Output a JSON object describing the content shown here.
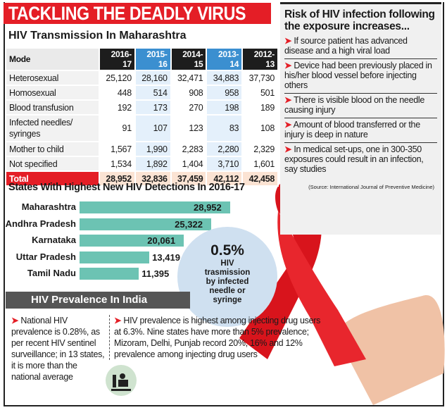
{
  "title": "TACKLING THE DEADLY VIRUS",
  "table": {
    "title": "HIV Transmission In Maharashtra",
    "columns": [
      "Mode",
      "2016-17",
      "2015-16",
      "2014-15",
      "2013-14",
      "2012-13"
    ],
    "rows": [
      [
        "Heterosexual",
        "25,120",
        "28,160",
        "32,471",
        "34,883",
        "37,730"
      ],
      [
        "Homosexual",
        "448",
        "514",
        "908",
        "958",
        "501"
      ],
      [
        "Blood transfusion",
        "192",
        "173",
        "270",
        "198",
        "189"
      ],
      [
        "Infected needles/ syringes",
        "91",
        "107",
        "123",
        "83",
        "108"
      ],
      [
        "Mother to child",
        "1,567",
        "1,990",
        "2,283",
        "2,280",
        "2,329"
      ],
      [
        "Not specified",
        "1,534",
        "1,892",
        "1,404",
        "3,710",
        "1,601"
      ],
      [
        "Total",
        "28,952",
        "32,836",
        "37,459",
        "42,112",
        "42,458"
      ]
    ]
  },
  "chart_data": {
    "type": "bar",
    "title": "States With Highest New HIV Detections In 2016-17",
    "categories": [
      "Maharashtra",
      "Andhra Pradesh",
      "Karnataka",
      "Uttar Pradesh",
      "Tamil Nadu"
    ],
    "values": [
      28952,
      25322,
      20061,
      13419,
      11395
    ],
    "value_labels": [
      "28,952",
      "25,322",
      "20,061",
      "13,419",
      "11,395"
    ],
    "orientation": "horizontal",
    "grid": false,
    "bar_color": "#6cc3b3"
  },
  "callout": {
    "value": "0.5%",
    "text": "HIV trasmission by infected needle or syringe"
  },
  "risk": {
    "title": "Risk of HIV infection following the exposure increases...",
    "items": [
      "If source patient has advanced disease and a high viral load",
      "Device had been previously placed in his/her blood vessel before injecting others",
      "There is visible blood on the needle causing injury",
      "Amount of blood transferred or the injury is deep in nature",
      "In medical set-ups, one in 300-350 exposures could result in an infection, say studies"
    ],
    "source": "(Source: International Journal of Preventive Medicine)"
  },
  "prevalence": {
    "title": "HIV Prevalence In India",
    "point1": "National HIV prevalence is 0.28%, as per recent HIV sentinel surveillance; in 13 states, it is more than the national average",
    "point2": "HIV prevalence is highest among injecting drug users at 6.3%. Nine states have more than 5% prevalence; Mizoram, Delhi, Punjab record 20%, 16% and 12% prevalence among injecting drug users"
  },
  "colors": {
    "accent": "#e41e26",
    "highlight_col": "#3b8fd0",
    "circle": "#cfe0f0"
  },
  "icons": [
    "arrow-bullet-icon",
    "red-ribbon-image",
    "drug-user-icon"
  ]
}
